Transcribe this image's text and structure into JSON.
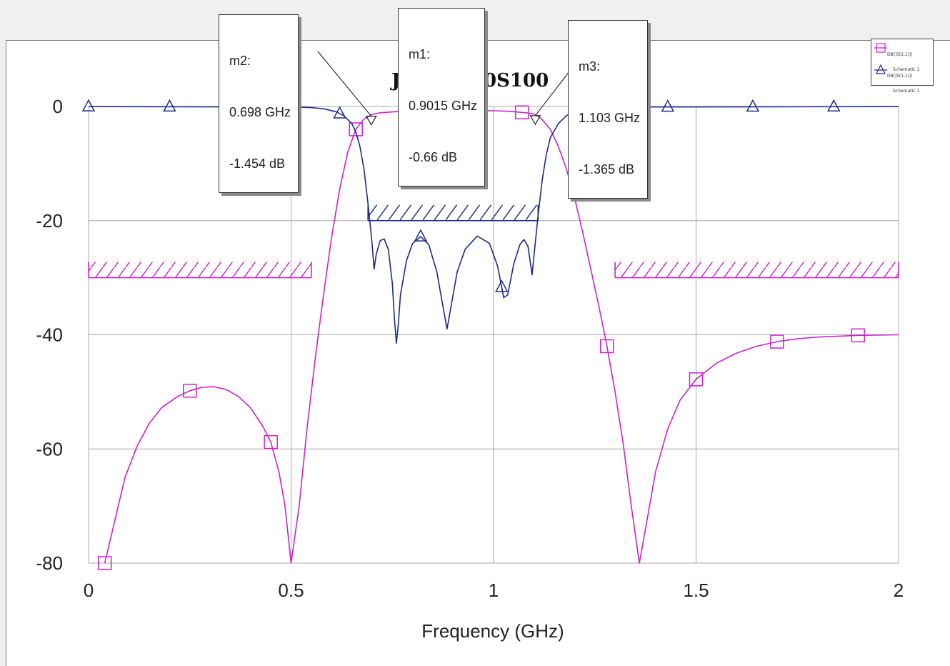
{
  "chart_data": {
    "type": "line",
    "title": "JECB1250S100",
    "xlabel": "Frequency (GHz)",
    "ylabel": "",
    "xlim": [
      0,
      2
    ],
    "ylim": [
      -80,
      0
    ],
    "x_ticks": [
      "0",
      "0.5",
      "1",
      "1.5",
      "2"
    ],
    "y_ticks": [
      "0",
      "-20",
      "-40",
      "-60",
      "-80"
    ],
    "grid": true,
    "legend_position": "top-right",
    "series": [
      {
        "name": "DB(|S(2,1)|)",
        "sub": "Schematic 1",
        "color": "#d020d0",
        "marker": "square",
        "points": [
          [
            0.04,
            -80
          ],
          [
            0.06,
            -74
          ],
          [
            0.09,
            -65
          ],
          [
            0.12,
            -59.5
          ],
          [
            0.15,
            -55.5
          ],
          [
            0.18,
            -52.8
          ],
          [
            0.22,
            -50.8
          ],
          [
            0.25,
            -49.8
          ],
          [
            0.28,
            -49.2
          ],
          [
            0.31,
            -49.1
          ],
          [
            0.34,
            -49.6
          ],
          [
            0.37,
            -50.8
          ],
          [
            0.4,
            -52.8
          ],
          [
            0.43,
            -56
          ],
          [
            0.45,
            -58.8
          ],
          [
            0.47,
            -64
          ],
          [
            0.485,
            -70
          ],
          [
            0.5,
            -80
          ],
          [
            0.52,
            -70
          ],
          [
            0.54,
            -56
          ],
          [
            0.56,
            -44
          ],
          [
            0.58,
            -33
          ],
          [
            0.6,
            -23
          ],
          [
            0.62,
            -14.5
          ],
          [
            0.64,
            -8
          ],
          [
            0.66,
            -4
          ],
          [
            0.68,
            -2.2
          ],
          [
            0.698,
            -1.454
          ],
          [
            0.72,
            -1.1
          ],
          [
            0.76,
            -0.9
          ],
          [
            0.8,
            -0.8
          ],
          [
            0.85,
            -0.72
          ],
          [
            0.9015,
            -0.66
          ],
          [
            0.95,
            -0.7
          ],
          [
            1.0,
            -0.75
          ],
          [
            1.04,
            -0.85
          ],
          [
            1.08,
            -1.1
          ],
          [
            1.103,
            -1.365
          ],
          [
            1.12,
            -2.3
          ],
          [
            1.14,
            -4
          ],
          [
            1.16,
            -7
          ],
          [
            1.18,
            -11
          ],
          [
            1.2,
            -16
          ],
          [
            1.22,
            -22
          ],
          [
            1.24,
            -28.5
          ],
          [
            1.26,
            -35
          ],
          [
            1.28,
            -42
          ],
          [
            1.3,
            -50
          ],
          [
            1.32,
            -59
          ],
          [
            1.34,
            -70
          ],
          [
            1.36,
            -80
          ],
          [
            1.38,
            -72
          ],
          [
            1.4,
            -64
          ],
          [
            1.43,
            -56.5
          ],
          [
            1.46,
            -51.5
          ],
          [
            1.5,
            -47.8
          ],
          [
            1.55,
            -45
          ],
          [
            1.6,
            -43.2
          ],
          [
            1.65,
            -42
          ],
          [
            1.7,
            -41.2
          ],
          [
            1.75,
            -40.7
          ],
          [
            1.8,
            -40.4
          ],
          [
            1.9,
            -40.1
          ],
          [
            2.0,
            -40
          ]
        ],
        "markers_x": [
          0.04,
          0.25,
          0.45,
          0.66,
          0.87,
          1.07,
          1.28,
          1.5,
          1.7,
          1.9
        ]
      },
      {
        "name": "DB(|S(1,1)|)",
        "sub": "Schematic 1",
        "color": "#1c2a8a",
        "marker": "triangle",
        "points": [
          [
            0.0,
            -0.02
          ],
          [
            0.5,
            -0.1
          ],
          [
            0.55,
            -0.2
          ],
          [
            0.58,
            -0.4
          ],
          [
            0.61,
            -0.9
          ],
          [
            0.63,
            -1.6
          ],
          [
            0.65,
            -3
          ],
          [
            0.66,
            -4.5
          ],
          [
            0.67,
            -7
          ],
          [
            0.68,
            -11
          ],
          [
            0.69,
            -17
          ],
          [
            0.7,
            -24
          ],
          [
            0.705,
            -28.5
          ],
          [
            0.71,
            -26
          ],
          [
            0.72,
            -23.5
          ],
          [
            0.73,
            -23.2
          ],
          [
            0.74,
            -25
          ],
          [
            0.75,
            -31
          ],
          [
            0.755,
            -37
          ],
          [
            0.76,
            -41.5
          ],
          [
            0.765,
            -38
          ],
          [
            0.77,
            -33
          ],
          [
            0.785,
            -27
          ],
          [
            0.8,
            -24
          ],
          [
            0.82,
            -22.8
          ],
          [
            0.84,
            -24.2
          ],
          [
            0.86,
            -29
          ],
          [
            0.875,
            -35
          ],
          [
            0.885,
            -39
          ],
          [
            0.895,
            -35
          ],
          [
            0.91,
            -29
          ],
          [
            0.93,
            -25
          ],
          [
            0.96,
            -22.7
          ],
          [
            0.99,
            -24
          ],
          [
            1.01,
            -28
          ],
          [
            1.025,
            -33.5
          ],
          [
            1.035,
            -33
          ],
          [
            1.05,
            -27.5
          ],
          [
            1.065,
            -24.2
          ],
          [
            1.075,
            -23.3
          ],
          [
            1.085,
            -24.5
          ],
          [
            1.095,
            -29.5
          ],
          [
            1.1,
            -26
          ],
          [
            1.11,
            -19
          ],
          [
            1.12,
            -13
          ],
          [
            1.13,
            -8.5
          ],
          [
            1.14,
            -5.5
          ],
          [
            1.16,
            -3
          ],
          [
            1.18,
            -1.6
          ],
          [
            1.2,
            -0.9
          ],
          [
            1.22,
            -0.5
          ],
          [
            1.25,
            -0.25
          ],
          [
            1.3,
            -0.1
          ],
          [
            2.0,
            -0.02
          ]
        ],
        "markers_x": [
          0.0,
          0.2,
          0.41,
          0.62,
          0.82,
          1.02,
          1.22,
          1.43,
          1.64,
          1.84
        ]
      }
    ],
    "limit_lines": [
      {
        "color": "#d020d0",
        "x": [
          0,
          0.55
        ],
        "y": -30,
        "hatch": "above"
      },
      {
        "color": "#d020d0",
        "x": [
          1.3,
          2.0
        ],
        "y": -30,
        "hatch": "above"
      },
      {
        "color": "#1c2a8a",
        "x": [
          0.69,
          1.11
        ],
        "y": -20,
        "hatch": "above"
      }
    ],
    "annotations": [
      {
        "id": "m2",
        "label": "m2:",
        "freq": "0.698 GHz",
        "value": "-1.454 dB",
        "x": 0.698,
        "y": -1.454
      },
      {
        "id": "m1",
        "label": "m1:",
        "freq": "0.9015 GHz",
        "value": "-0.66 dB",
        "x": 0.9015,
        "y": -0.66
      },
      {
        "id": "m3",
        "label": "m3:",
        "freq": "1.103 GHz",
        "value": "-1.365 dB",
        "x": 1.103,
        "y": -1.365
      }
    ]
  }
}
